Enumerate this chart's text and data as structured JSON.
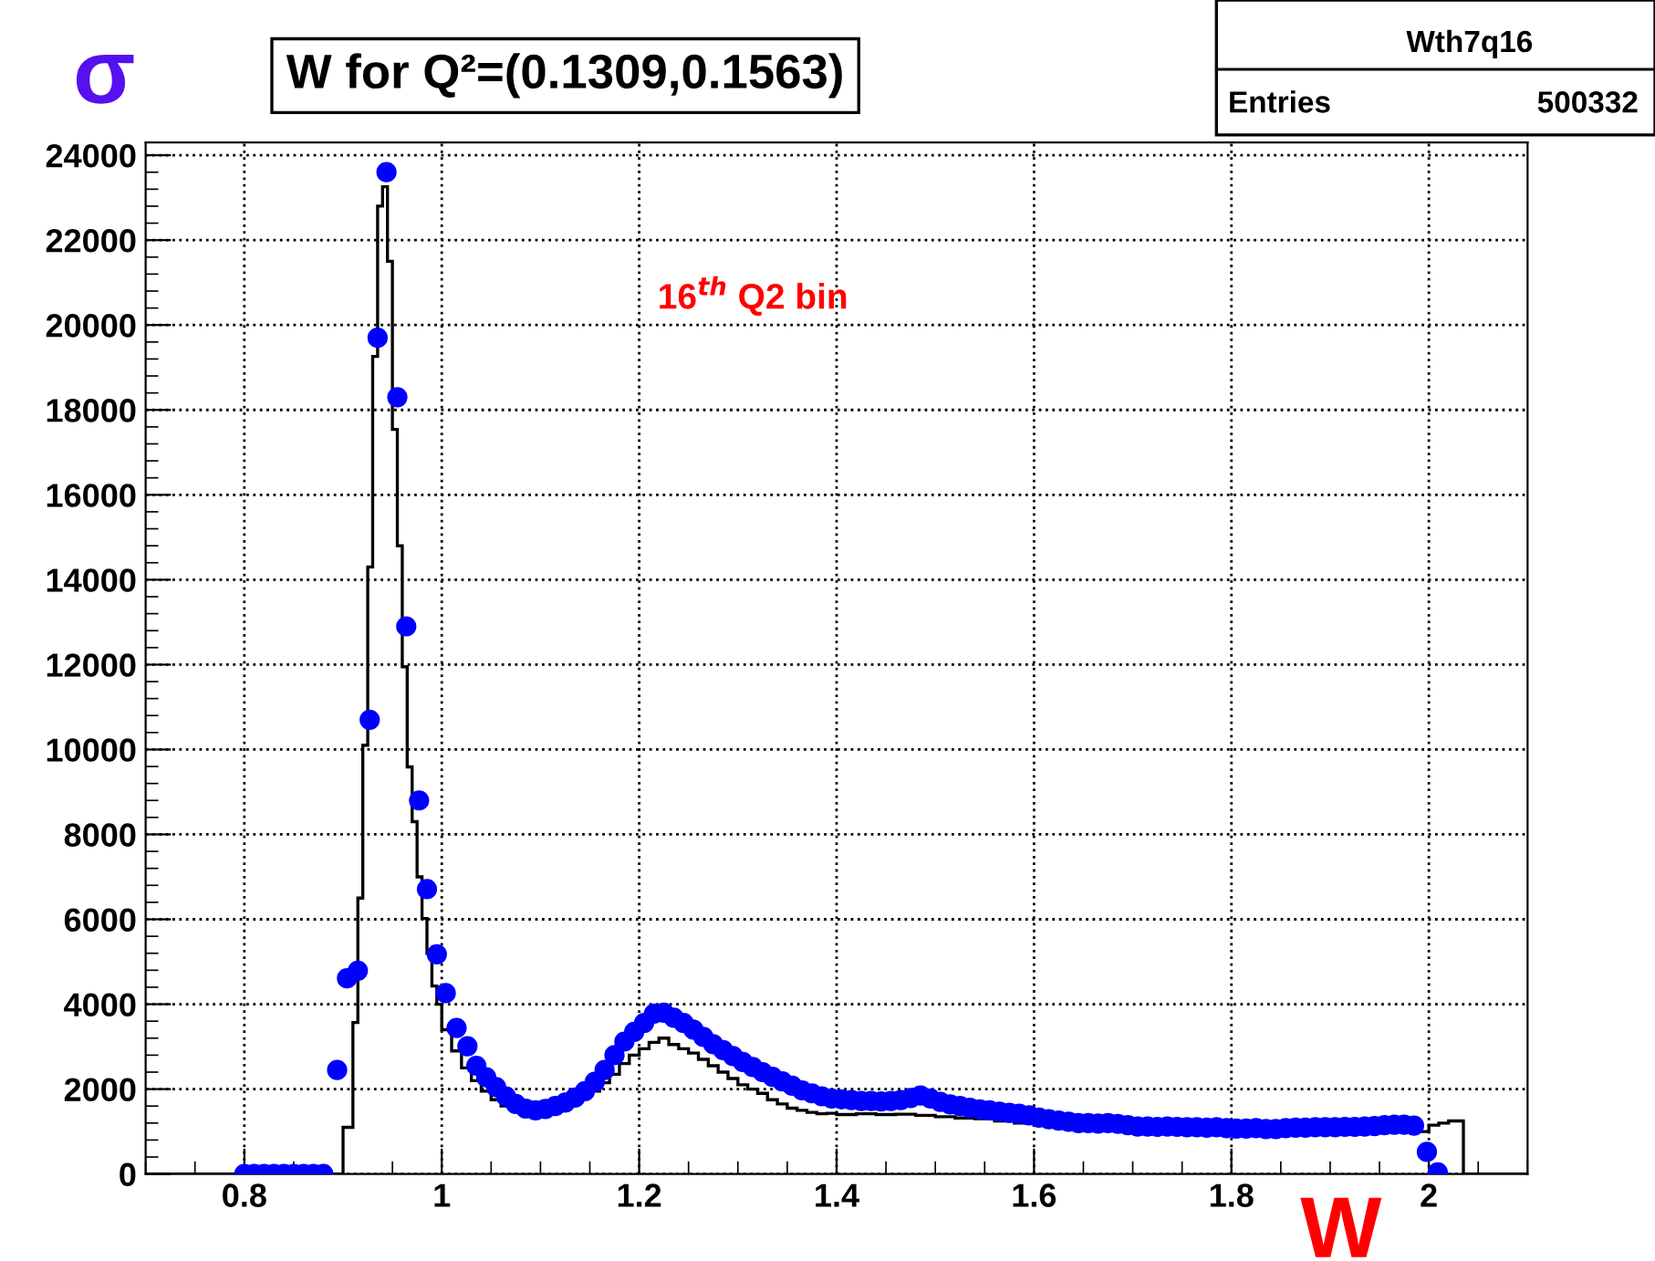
{
  "chart_data": {
    "type": "histogram",
    "title": "W for Q²=(0.1309,0.1563)",
    "xlabel": "W",
    "ylabel": "σ",
    "annotations": [
      "Wth7q16",
      "Entries",
      "500332",
      "16$^{th}$ Q2 bin"
    ],
    "xlim": [
      0.7,
      2.1
    ],
    "xticks": [
      0.8,
      1,
      1.2,
      1.4,
      1.6,
      1.8,
      2
    ],
    "ylim": [
      0,
      24300
    ],
    "yticks": [
      0,
      2000,
      4000,
      6000,
      8000,
      10000,
      12000,
      14000,
      16000,
      18000,
      20000,
      22000,
      24000
    ],
    "grid": true,
    "legend": false,
    "series": [
      {
        "color": "#000000",
        "bins": [
          0.7,
          0.71,
          0.72,
          0.73,
          0.74,
          0.75,
          0.76,
          0.77,
          0.78,
          0.79,
          0.8,
          0.81,
          0.82,
          0.83,
          0.84,
          0.85,
          0.86,
          0.87,
          0.88,
          0.89,
          0.9,
          0.905,
          0.91,
          0.915,
          0.92,
          0.925,
          0.93,
          0.935,
          0.94,
          0.945,
          0.95,
          0.955,
          0.96,
          0.965,
          0.97,
          0.975,
          0.98,
          0.985,
          0.99,
          0.995,
          1.0,
          1.01,
          1.02,
          1.03,
          1.04,
          1.05,
          1.06,
          1.07,
          1.08,
          1.09,
          1.1,
          1.11,
          1.12,
          1.13,
          1.14,
          1.15,
          1.16,
          1.17,
          1.18,
          1.19,
          1.2,
          1.21,
          1.22,
          1.23,
          1.24,
          1.25,
          1.26,
          1.27,
          1.28,
          1.29,
          1.3,
          1.31,
          1.32,
          1.33,
          1.34,
          1.35,
          1.36,
          1.37,
          1.38,
          1.39,
          1.4,
          1.42,
          1.44,
          1.46,
          1.48,
          1.5,
          1.52,
          1.54,
          1.56,
          1.58,
          1.6,
          1.62,
          1.64,
          1.66,
          1.68,
          1.7,
          1.72,
          1.74,
          1.76,
          1.78,
          1.8,
          1.82,
          1.84,
          1.86,
          1.88,
          1.9,
          1.92,
          1.94,
          1.96,
          1.98,
          2.0,
          2.01,
          2.02,
          2.035,
          2.05,
          2.1
        ],
        "values": [
          0,
          0,
          0,
          0,
          0,
          0,
          0,
          0,
          0,
          0,
          0,
          0,
          0,
          0,
          0,
          0,
          0,
          0,
          0,
          0,
          1100,
          1100,
          3570,
          6500,
          10100,
          14300,
          19260,
          22800,
          23260,
          21500,
          17540,
          14800,
          11950,
          9590,
          8300,
          7000,
          6020,
          5200,
          4430,
          4000,
          3400,
          2900,
          2500,
          2200,
          1950,
          1750,
          1600,
          1500,
          1420,
          1380,
          1400,
          1450,
          1530,
          1650,
          1800,
          1950,
          2150,
          2350,
          2600,
          2800,
          2950,
          3100,
          3200,
          3050,
          2950,
          2850,
          2700,
          2550,
          2400,
          2250,
          2100,
          2000,
          1900,
          1750,
          1650,
          1550,
          1500,
          1450,
          1420,
          1430,
          1400,
          1420,
          1400,
          1410,
          1380,
          1350,
          1320,
          1300,
          1250,
          1200,
          1150,
          1150,
          1100,
          1100,
          1080,
          1050,
          1040,
          1030,
          1020,
          1000,
          990,
          1000,
          990,
          1000,
          1000,
          1000,
          1010,
          1000,
          1000,
          1000,
          1150,
          1200,
          1250,
          0,
          0
        ]
      },
      {
        "type": "scatter",
        "color": "#0000ff",
        "marker": "circle",
        "x": [
          0.8,
          0.81,
          0.82,
          0.83,
          0.84,
          0.85,
          0.86,
          0.87,
          0.88,
          0.894,
          0.904,
          0.915,
          0.927,
          0.935,
          0.944,
          0.955,
          0.964,
          0.977,
          0.985,
          0.995,
          1.004,
          1.015,
          1.026,
          1.035,
          1.045,
          1.055,
          1.065,
          1.075,
          1.085,
          1.095,
          1.105,
          1.115,
          1.125,
          1.135,
          1.145,
          1.155,
          1.165,
          1.175,
          1.185,
          1.195,
          1.205,
          1.215,
          1.225,
          1.235,
          1.245,
          1.255,
          1.265,
          1.275,
          1.285,
          1.295,
          1.305,
          1.315,
          1.325,
          1.335,
          1.345,
          1.355,
          1.365,
          1.375,
          1.385,
          1.395,
          1.405,
          1.415,
          1.425,
          1.435,
          1.445,
          1.455,
          1.465,
          1.475,
          1.485,
          1.495,
          1.505,
          1.515,
          1.525,
          1.535,
          1.545,
          1.555,
          1.565,
          1.575,
          1.585,
          1.595,
          1.605,
          1.615,
          1.625,
          1.635,
          1.645,
          1.655,
          1.665,
          1.675,
          1.685,
          1.695,
          1.705,
          1.715,
          1.725,
          1.735,
          1.745,
          1.755,
          1.765,
          1.775,
          1.785,
          1.795,
          1.805,
          1.815,
          1.825,
          1.835,
          1.845,
          1.855,
          1.865,
          1.875,
          1.885,
          1.895,
          1.905,
          1.915,
          1.925,
          1.935,
          1.945,
          1.955,
          1.965,
          1.975,
          1.985,
          1.998,
          2.009
        ],
        "values": [
          0,
          0,
          0,
          0,
          0,
          0,
          0,
          0,
          0,
          2450,
          4610,
          4790,
          10700,
          19700,
          23600,
          18300,
          12900,
          8800,
          6710,
          5175,
          4260,
          3440,
          3010,
          2550,
          2280,
          2050,
          1830,
          1650,
          1540,
          1500,
          1530,
          1600,
          1680,
          1800,
          1950,
          2170,
          2450,
          2800,
          3120,
          3350,
          3560,
          3780,
          3800,
          3680,
          3560,
          3400,
          3230,
          3060,
          2920,
          2780,
          2640,
          2520,
          2400,
          2290,
          2180,
          2080,
          1970,
          1900,
          1830,
          1780,
          1760,
          1740,
          1720,
          1720,
          1710,
          1720,
          1740,
          1790,
          1850,
          1780,
          1700,
          1640,
          1600,
          1560,
          1520,
          1500,
          1470,
          1440,
          1420,
          1380,
          1330,
          1290,
          1260,
          1230,
          1200,
          1200,
          1190,
          1200,
          1180,
          1150,
          1120,
          1120,
          1110,
          1120,
          1110,
          1100,
          1100,
          1090,
          1100,
          1080,
          1070,
          1070,
          1080,
          1060,
          1060,
          1080,
          1090,
          1090,
          1100,
          1100,
          1100,
          1110,
          1110,
          1120,
          1130,
          1150,
          1160,
          1160,
          1140,
          520,
          40
        ]
      }
    ]
  }
}
